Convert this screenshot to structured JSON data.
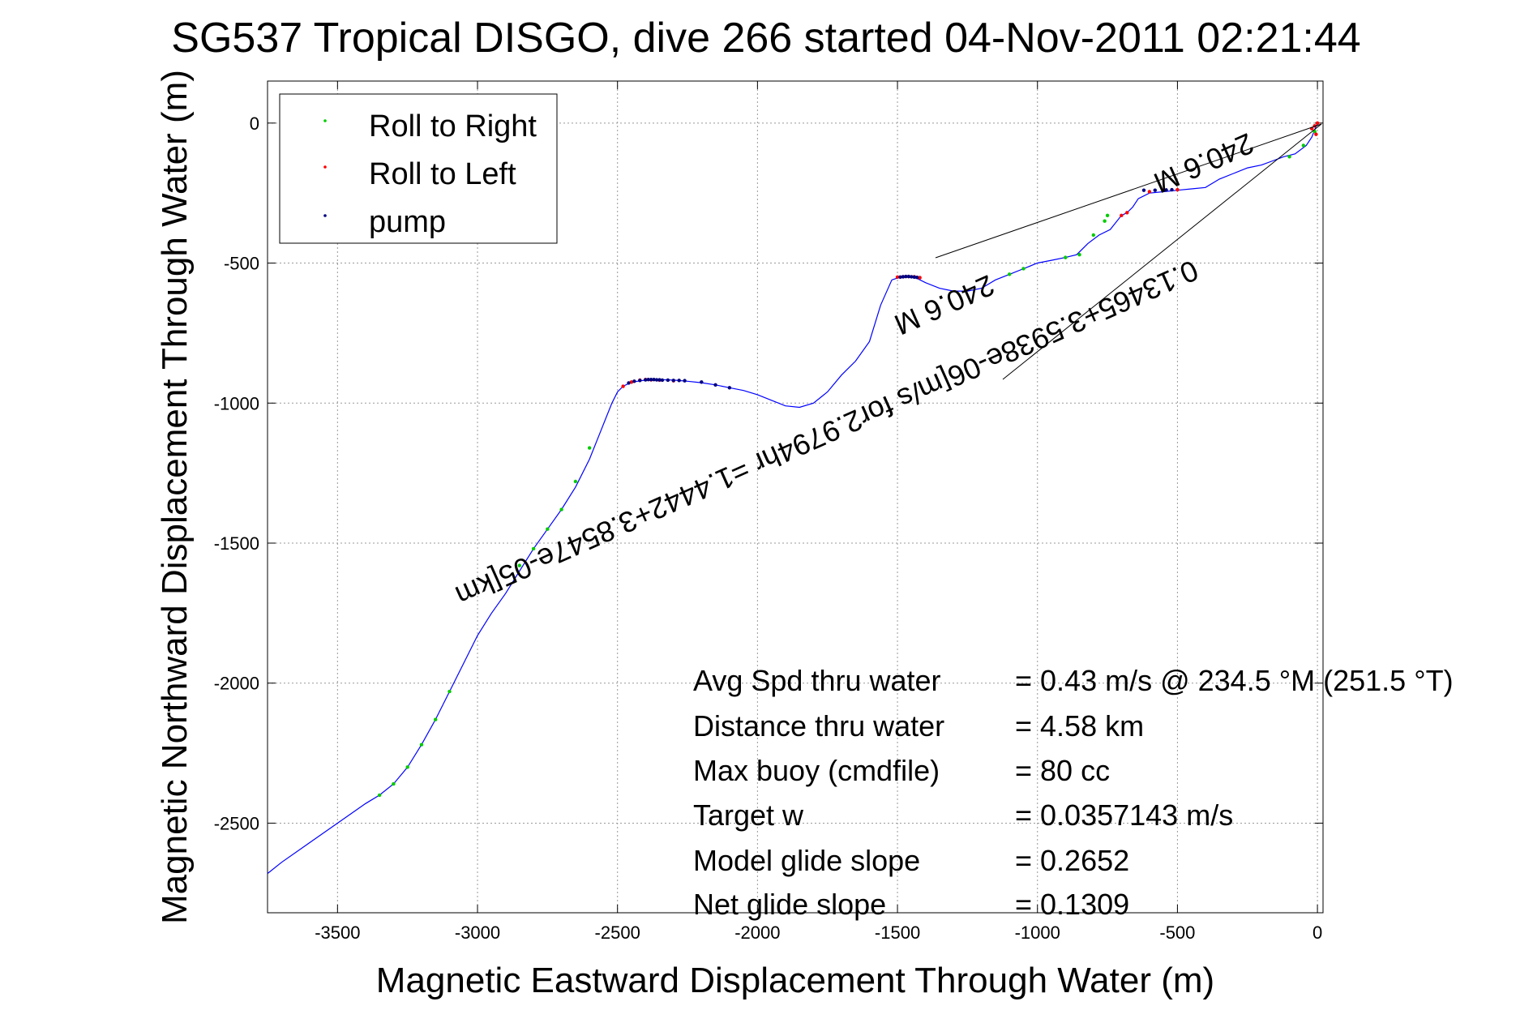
{
  "chart_data": {
    "type": "line",
    "title": "SG537 Tropical DISGO, dive 266 started 04-Nov-2011 02:21:44",
    "xlabel": "Magnetic Eastward Displacement Through Water (m)",
    "ylabel": "Magnetic Northward Displacement Through Water (m)",
    "xlim": [
      -3750,
      20
    ],
    "ylim": [
      -2820,
      150
    ],
    "x_ticks": [
      -3500,
      -3000,
      -2500,
      -2000,
      -1500,
      -1000,
      -500,
      0
    ],
    "x_tick_labels": [
      "-3500",
      "-3000",
      "-2500",
      "-2000",
      "-1500",
      "-1000",
      "-500",
      "0"
    ],
    "y_ticks": [
      0,
      -500,
      -1000,
      -1500,
      -2000,
      -2500
    ],
    "y_tick_labels": [
      "0",
      "-500",
      "-1000",
      "-1500",
      "-2000",
      "-2500"
    ],
    "grid": true,
    "legend_position": "top-left",
    "legend": [
      {
        "label": "Roll to Right",
        "color": "#00cc00"
      },
      {
        "label": "Roll to Left",
        "color": "#ff0000"
      },
      {
        "label": "pump",
        "color": "#000080"
      }
    ],
    "track_color": "#0000ff",
    "track": {
      "x": [
        0,
        -8,
        -20,
        -40,
        -80,
        -120,
        -160,
        -200,
        -250,
        -300,
        -350,
        -400,
        -450,
        -500,
        -550,
        -600,
        -640,
        -660,
        -680,
        -700,
        -740,
        -780,
        -820,
        -860,
        -900,
        -950,
        -1000,
        -1050,
        -1100,
        -1150,
        -1200,
        -1250,
        -1300,
        -1350,
        -1400,
        -1430,
        -1450,
        -1470,
        -1490,
        -1520,
        -1560,
        -1600,
        -1650,
        -1700,
        -1750,
        -1800,
        -1850,
        -1900,
        -1950,
        -2000,
        -2050,
        -2100,
        -2150,
        -2200,
        -2250,
        -2300,
        -2350,
        -2400,
        -2450,
        -2480,
        -2500,
        -2520,
        -2540,
        -2560,
        -2600,
        -2650,
        -2700,
        -2750,
        -2800,
        -2850,
        -2900,
        -2950,
        -3000,
        -3050,
        -3100,
        -3150,
        -3200,
        -3250,
        -3300,
        -3350,
        -3400,
        -3500,
        -3600,
        -3700,
        -3750
      ],
      "y": [
        0,
        -20,
        -50,
        -80,
        -110,
        -120,
        -135,
        -150,
        -160,
        -180,
        -200,
        -230,
        -235,
        -240,
        -245,
        -250,
        -270,
        -300,
        -320,
        -330,
        -380,
        -400,
        -430,
        -470,
        -480,
        -490,
        -500,
        -520,
        -540,
        -560,
        -590,
        -600,
        -600,
        -590,
        -570,
        -555,
        -550,
        -548,
        -550,
        -560,
        -650,
        -780,
        -850,
        -900,
        -960,
        -1000,
        -1015,
        -1010,
        -990,
        -970,
        -955,
        -945,
        -935,
        -927,
        -922,
        -918,
        -916,
        -918,
        -925,
        -940,
        -960,
        -1000,
        -1050,
        -1100,
        -1200,
        -1300,
        -1380,
        -1450,
        -1520,
        -1600,
        -1680,
        -1750,
        -1830,
        -1930,
        -2030,
        -2130,
        -2220,
        -2300,
        -2360,
        -2400,
        -2430,
        -2500,
        -2570,
        -2640,
        -2680
      ]
    },
    "roll_to_right": {
      "x": [
        -2600,
        -2650,
        -2700,
        -2750,
        -2800,
        -2850,
        -3100,
        -3150,
        -3200,
        -3250,
        -3300,
        -3350,
        -1100,
        -1050,
        -900,
        -850,
        -800,
        -750,
        -760,
        -100,
        -50,
        -10
      ],
      "y": [
        -1160,
        -1280,
        -1380,
        -1450,
        -1520,
        -1580,
        -2030,
        -2130,
        -2220,
        -2300,
        -2360,
        -2400,
        -540,
        -520,
        -480,
        -470,
        -400,
        -330,
        -350,
        -120,
        -80,
        -30
      ]
    },
    "roll_to_left": {
      "x": [
        -2480,
        -2450,
        -2420,
        -2400,
        -2380,
        -2350,
        -2300,
        -1500,
        -1480,
        -1460,
        -1440,
        -1420,
        -700,
        -680,
        -600,
        -550,
        -500,
        -20,
        -10,
        0,
        -5
      ],
      "y": [
        -940,
        -925,
        -918,
        -916,
        -917,
        -918,
        -920,
        -550,
        -549,
        -548,
        -549,
        -552,
        -330,
        -320,
        -245,
        -240,
        -238,
        -20,
        -10,
        0,
        -40
      ]
    },
    "pump": {
      "x": [
        -2460,
        -2440,
        -2420,
        -2400,
        -2390,
        -2380,
        -2370,
        -2360,
        -2350,
        -2340,
        -2320,
        -2300,
        -2280,
        -2260,
        -2200,
        -2150,
        -2100,
        -1490,
        -1480,
        -1470,
        -1460,
        -1450,
        -1440,
        -1430,
        -620,
        -580,
        -540,
        -520
      ],
      "y": [
        -928,
        -922,
        -919,
        -917,
        -916,
        -916,
        -916,
        -917,
        -917,
        -918,
        -918,
        -919,
        -919,
        -920,
        -925,
        -935,
        -945,
        -550,
        -549,
        -548,
        -548,
        -549,
        -550,
        -551,
        -240,
        -240,
        -239,
        -238
      ]
    },
    "annotations": {
      "line1": "0.13465+3.5938e-06[m/s for2.9794hr =1.4442+3.8547e-05[km",
      "line2": "240.6 M",
      "line3": "240.6 M"
    },
    "stats": [
      {
        "label": "Avg Spd thru water",
        "value": "=  0.43 m/s @ 234.5 °M (251.5 °T)"
      },
      {
        "label": "Distance thru water",
        "value": "=  4.58 km"
      },
      {
        "label": "Max buoy (cmdfile)",
        "value": "= 80 cc"
      },
      {
        "label": "Target w",
        "value": "= 0.0357143 m/s"
      },
      {
        "label": "Model glide slope",
        "value": "= 0.2652"
      },
      {
        "label": "Net glide slope",
        "value": "= 0.1309"
      }
    ]
  }
}
